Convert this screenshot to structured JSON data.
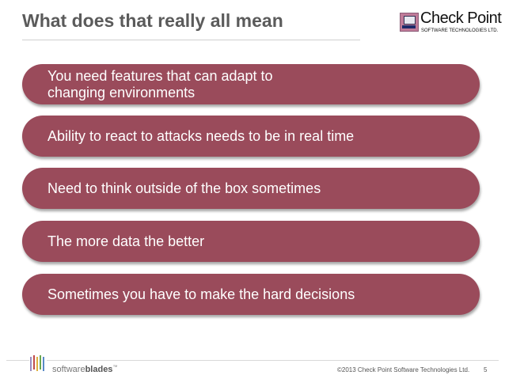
{
  "header": {
    "title": "What does that really all mean"
  },
  "logo": {
    "name": "Check Point",
    "tagline": "SOFTWARE TECHNOLOGIES LTD."
  },
  "bullets": [
    {
      "line1": "You need features that can adapt to",
      "line2": "changing environments"
    },
    {
      "line1": "Ability to react to attacks needs to be in real time"
    },
    {
      "line1": "Need to think outside of the box sometimes"
    },
    {
      "line1": "The more data the better"
    },
    {
      "line1": "Sometimes you have to make the hard decisions"
    }
  ],
  "footer": {
    "brand_light": "software",
    "brand_bold": "blades",
    "brand_tm": "™",
    "copyright": "©2013 Check Point Software Technologies Ltd.",
    "page": "5"
  },
  "colors": {
    "bar": "#9a4b5b",
    "title": "#5b5b5b"
  }
}
